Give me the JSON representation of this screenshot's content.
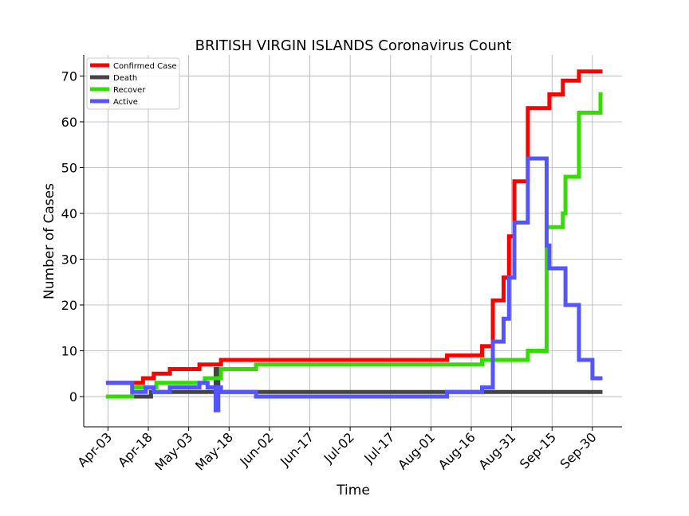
{
  "chart_data": {
    "type": "line",
    "title": "BRITISH VIRGIN ISLANDS Coronavirus Count",
    "xlabel": "Time",
    "ylabel": "Number of Cases",
    "x_start": "2020-04-03",
    "x_end": "2020-10-03",
    "xlim": [
      "2020-03-25",
      "2020-10-11"
    ],
    "ylim": [
      -6.6,
      74.6
    ],
    "x_ticks": [
      "Apr-03",
      "Apr-18",
      "May-03",
      "May-18",
      "Jun-02",
      "Jun-17",
      "Jul-02",
      "Jul-17",
      "Aug-01",
      "Aug-16",
      "Aug-31",
      "Sep-15",
      "Sep-30"
    ],
    "x_tick_dates": [
      "2020-04-03",
      "2020-04-18",
      "2020-05-03",
      "2020-05-18",
      "2020-06-02",
      "2020-06-17",
      "2020-07-02",
      "2020-07-17",
      "2020-08-01",
      "2020-08-16",
      "2020-08-31",
      "2020-09-15",
      "2020-09-30"
    ],
    "y_ticks": [
      0,
      10,
      20,
      30,
      40,
      50,
      60,
      70
    ],
    "grid": true,
    "legend_position": "top-left",
    "series": [
      {
        "name": "Confirmed Case",
        "color": "#ff0000",
        "steps": [
          [
            "2020-04-03",
            3
          ],
          [
            "2020-04-16",
            4
          ],
          [
            "2020-04-20",
            5
          ],
          [
            "2020-04-26",
            6
          ],
          [
            "2020-05-07",
            7
          ],
          [
            "2020-05-15",
            8
          ],
          [
            "2020-08-07",
            9
          ],
          [
            "2020-08-20",
            11
          ],
          [
            "2020-08-24",
            21
          ],
          [
            "2020-08-28",
            26
          ],
          [
            "2020-08-30",
            35
          ],
          [
            "2020-09-01",
            47
          ],
          [
            "2020-09-06",
            63
          ],
          [
            "2020-09-14",
            66
          ],
          [
            "2020-09-19",
            69
          ],
          [
            "2020-09-25",
            71
          ],
          [
            "2020-10-03",
            71
          ]
        ]
      },
      {
        "name": "Death",
        "color": "#444444",
        "steps": [
          [
            "2020-04-03",
            0
          ],
          [
            "2020-04-19",
            1
          ],
          [
            "2020-05-13",
            6
          ],
          [
            "2020-05-14",
            1
          ],
          [
            "2020-10-03",
            1
          ]
        ]
      },
      {
        "name": "Recover",
        "color": "#33dd00",
        "steps": [
          [
            "2020-04-03",
            0
          ],
          [
            "2020-04-12",
            2
          ],
          [
            "2020-04-21",
            3
          ],
          [
            "2020-05-09",
            4
          ],
          [
            "2020-05-15",
            6
          ],
          [
            "2020-05-28",
            7
          ],
          [
            "2020-08-20",
            8
          ],
          [
            "2020-09-06",
            10
          ],
          [
            "2020-09-13",
            37
          ],
          [
            "2020-09-19",
            40
          ],
          [
            "2020-09-20",
            48
          ],
          [
            "2020-09-25",
            62
          ],
          [
            "2020-10-03",
            66
          ]
        ]
      },
      {
        "name": "Active",
        "color": "#5555ff",
        "steps": [
          [
            "2020-04-03",
            3
          ],
          [
            "2020-04-12",
            1
          ],
          [
            "2020-04-17",
            2
          ],
          [
            "2020-04-20",
            1
          ],
          [
            "2020-04-26",
            2
          ],
          [
            "2020-05-07",
            3
          ],
          [
            "2020-05-10",
            2
          ],
          [
            "2020-05-13",
            -3
          ],
          [
            "2020-05-14",
            2
          ],
          [
            "2020-05-15",
            1
          ],
          [
            "2020-05-28",
            0
          ],
          [
            "2020-08-07",
            1
          ],
          [
            "2020-08-20",
            2
          ],
          [
            "2020-08-24",
            12
          ],
          [
            "2020-08-28",
            17
          ],
          [
            "2020-08-30",
            26
          ],
          [
            "2020-09-01",
            38
          ],
          [
            "2020-09-06",
            52
          ],
          [
            "2020-09-13",
            33
          ],
          [
            "2020-09-14",
            28
          ],
          [
            "2020-09-20",
            20
          ],
          [
            "2020-09-25",
            8
          ],
          [
            "2020-09-30",
            4
          ],
          [
            "2020-10-03",
            4
          ]
        ]
      }
    ]
  }
}
